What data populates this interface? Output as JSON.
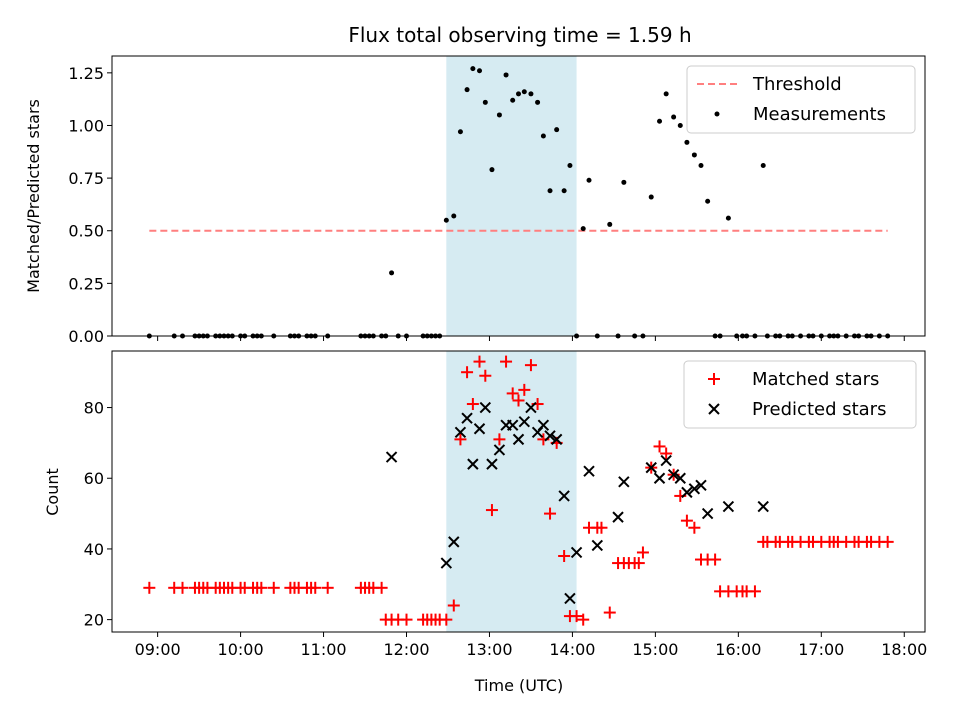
{
  "chart_data": [
    {
      "type": "scatter",
      "title": "Flux total observing time = 1.59 h",
      "xlabel": "",
      "ylabel": "Matched/Predicted stars",
      "xlim": [
        8.45,
        18.25
      ],
      "ylim": [
        0,
        1.33
      ],
      "yticks": [
        0,
        0.25,
        0.5,
        0.75,
        1.0,
        1.25
      ],
      "ytick_labels": [
        "0.00",
        "0.25",
        "0.50",
        "0.75",
        "1.00",
        "1.25"
      ],
      "xticks": [
        9,
        10,
        11,
        12,
        13,
        14,
        15,
        16,
        17,
        18
      ],
      "xtick_labels": [],
      "shaded_span": {
        "x0": 12.48,
        "x1": 14.05,
        "color": "#add8e6"
      },
      "legend_position": "top-right",
      "series": [
        {
          "name": "Threshold",
          "style": "dashed-line",
          "color": "#ff7f7f",
          "x": [
            8.9,
            17.8
          ],
          "y": [
            0.5,
            0.5
          ]
        },
        {
          "name": "Measurements",
          "style": "dot",
          "color": "#000000",
          "x": [
            8.9,
            9.2,
            9.3,
            9.45,
            9.5,
            9.55,
            9.6,
            9.7,
            9.75,
            9.8,
            9.85,
            9.9,
            10.0,
            10.05,
            10.15,
            10.2,
            10.25,
            10.4,
            10.6,
            10.65,
            10.7,
            10.8,
            10.85,
            10.9,
            11.05,
            11.45,
            11.5,
            11.55,
            11.6,
            11.7,
            11.75,
            11.82,
            11.9,
            12.0,
            12.2,
            12.25,
            12.3,
            12.35,
            12.4,
            12.48,
            12.57,
            12.65,
            12.73,
            12.8,
            12.88,
            12.95,
            13.03,
            13.12,
            13.2,
            13.28,
            13.35,
            13.42,
            13.5,
            13.58,
            13.65,
            13.73,
            13.81,
            13.9,
            13.97,
            14.05,
            14.13,
            14.2,
            14.3,
            14.45,
            14.55,
            14.62,
            14.75,
            14.85,
            14.95,
            15.05,
            15.13,
            15.22,
            15.3,
            15.38,
            15.47,
            15.55,
            15.63,
            15.72,
            15.78,
            15.88,
            15.98,
            16.05,
            16.1,
            16.2,
            16.3,
            16.35,
            16.45,
            16.5,
            16.6,
            16.65,
            16.75,
            16.85,
            16.9,
            17.0,
            17.1,
            17.15,
            17.2,
            17.3,
            17.4,
            17.45,
            17.55,
            17.6,
            17.7,
            17.8
          ],
          "y": [
            0.0,
            0.0,
            0.0,
            0.0,
            0.0,
            0.0,
            0.0,
            0.0,
            0.0,
            0.0,
            0.0,
            0.0,
            0.0,
            0.0,
            0.0,
            0.0,
            0.0,
            0.0,
            0.0,
            0.0,
            0.0,
            0.0,
            0.0,
            0.0,
            0.0,
            0.0,
            0.0,
            0.0,
            0.0,
            0.0,
            0.0,
            0.3,
            0.0,
            0.0,
            0.0,
            0.0,
            0.0,
            0.0,
            0.0,
            0.55,
            0.57,
            0.97,
            1.17,
            1.27,
            1.26,
            1.11,
            0.79,
            1.05,
            1.24,
            1.12,
            1.15,
            1.16,
            1.15,
            1.11,
            0.95,
            0.69,
            0.98,
            0.69,
            0.81,
            0.0,
            0.51,
            0.74,
            0.0,
            0.53,
            0.0,
            0.73,
            0.0,
            0.0,
            0.66,
            1.02,
            1.15,
            1.04,
            1.0,
            0.92,
            0.86,
            0.81,
            0.64,
            0.0,
            0.0,
            0.56,
            0.0,
            0.0,
            0.0,
            0.0,
            0.81,
            0.0,
            0.0,
            0.0,
            0.0,
            0.0,
            0.0,
            0.0,
            0.0,
            0.0,
            0.0,
            0.0,
            0.0,
            0.0,
            0.0,
            0.0,
            0.0,
            0.0,
            0.0,
            0.0
          ]
        }
      ]
    },
    {
      "type": "scatter",
      "title": "",
      "xlabel": "Time (UTC)",
      "ylabel": "Count",
      "xlim": [
        8.45,
        18.25
      ],
      "ylim": [
        16.5,
        96
      ],
      "yticks": [
        20,
        40,
        60,
        80
      ],
      "ytick_labels": [
        "20",
        "40",
        "60",
        "80"
      ],
      "xticks": [
        9,
        10,
        11,
        12,
        13,
        14,
        15,
        16,
        17,
        18
      ],
      "xtick_labels": [
        "09:00",
        "10:00",
        "11:00",
        "12:00",
        "13:00",
        "14:00",
        "15:00",
        "16:00",
        "17:00",
        "18:00"
      ],
      "shaded_span": {
        "x0": 12.48,
        "x1": 14.05,
        "color": "#add8e6"
      },
      "legend_position": "top-right",
      "series": [
        {
          "name": "Matched stars",
          "style": "plus",
          "color": "#ff0000",
          "x": [
            8.9,
            9.2,
            9.3,
            9.45,
            9.5,
            9.55,
            9.6,
            9.7,
            9.75,
            9.8,
            9.85,
            9.9,
            10.0,
            10.05,
            10.15,
            10.2,
            10.25,
            10.4,
            10.6,
            10.65,
            10.7,
            10.8,
            10.85,
            10.9,
            11.05,
            11.45,
            11.5,
            11.55,
            11.6,
            11.7,
            11.75,
            11.82,
            11.9,
            12.0,
            12.2,
            12.25,
            12.3,
            12.35,
            12.4,
            12.48,
            12.57,
            12.65,
            12.73,
            12.8,
            12.88,
            12.95,
            13.03,
            13.12,
            13.2,
            13.28,
            13.35,
            13.42,
            13.5,
            13.58,
            13.65,
            13.73,
            13.81,
            13.9,
            13.97,
            14.05,
            14.13,
            14.2,
            14.3,
            14.35,
            14.45,
            14.55,
            14.62,
            14.68,
            14.75,
            14.8,
            14.85,
            14.95,
            15.05,
            15.13,
            15.22,
            15.3,
            15.38,
            15.47,
            15.55,
            15.63,
            15.72,
            15.78,
            15.88,
            15.98,
            16.05,
            16.1,
            16.2,
            16.3,
            16.35,
            16.45,
            16.5,
            16.6,
            16.65,
            16.75,
            16.85,
            16.9,
            17.0,
            17.1,
            17.15,
            17.2,
            17.3,
            17.4,
            17.45,
            17.55,
            17.6,
            17.7,
            17.8
          ],
          "y": [
            29,
            29,
            29,
            29,
            29,
            29,
            29,
            29,
            29,
            29,
            29,
            29,
            29,
            29,
            29,
            29,
            29,
            29,
            29,
            29,
            29,
            29,
            29,
            29,
            29,
            29,
            29,
            29,
            29,
            29,
            20,
            20,
            20,
            20,
            20,
            20,
            20,
            20,
            20,
            20,
            24,
            71,
            90,
            81,
            93,
            89,
            51,
            71,
            93,
            84,
            82,
            85,
            92,
            81,
            71,
            50,
            70,
            38,
            21,
            21,
            20,
            46,
            46,
            46,
            22,
            36,
            36,
            36,
            36,
            36,
            39,
            63,
            69,
            67,
            61,
            55,
            48,
            46,
            37,
            37,
            37,
            28,
            28,
            28,
            28,
            28,
            28,
            42,
            42,
            42,
            42,
            42,
            42,
            42,
            42,
            42,
            42,
            42,
            42,
            42,
            42,
            42,
            42,
            42,
            42,
            42,
            42
          ]
        },
        {
          "name": "Predicted stars",
          "style": "x",
          "color": "#000000",
          "x": [
            11.82,
            12.48,
            12.57,
            12.65,
            12.73,
            12.8,
            12.88,
            12.95,
            13.03,
            13.12,
            13.2,
            13.28,
            13.35,
            13.42,
            13.5,
            13.58,
            13.65,
            13.73,
            13.81,
            13.9,
            13.97,
            14.05,
            14.2,
            14.3,
            14.55,
            14.62,
            14.95,
            15.05,
            15.13,
            15.22,
            15.3,
            15.38,
            15.47,
            15.55,
            15.63,
            15.88,
            16.3
          ],
          "y": [
            66,
            36,
            42,
            73,
            77,
            64,
            74,
            80,
            64,
            68,
            75,
            75,
            71,
            76,
            80,
            73,
            75,
            72,
            71,
            55,
            26,
            39,
            62,
            41,
            49,
            59,
            63,
            60,
            65,
            61,
            60,
            56,
            57,
            58,
            50,
            52,
            52
          ]
        }
      ]
    }
  ]
}
